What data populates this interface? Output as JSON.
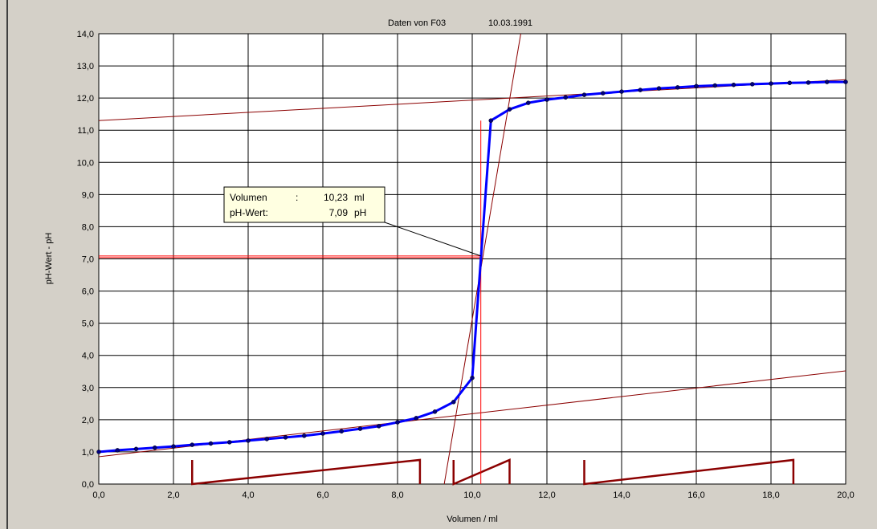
{
  "header": {
    "title": "Daten von F03",
    "date": "10.03.1991"
  },
  "tooltip": {
    "line1_label": "Volumen",
    "line1_sep": ":",
    "line1_value": "10,23",
    "line1_unit": "ml",
    "line2_label": "pH-Wert:",
    "line2_value": "7,09",
    "line2_unit": "pH",
    "point": {
      "x": 10.23,
      "y": 7.09
    }
  },
  "colors": {
    "background": "#d4d0c8",
    "plot_area": "#ffffff",
    "grid": "#000000",
    "curve": "#0000ff",
    "markers": "#000080",
    "tangents": "#8b0000",
    "indicator": "#ff0000",
    "tooltip_bg": "#ffffe1"
  },
  "chart_data": {
    "type": "line",
    "xlabel": "Volumen / ml",
    "ylabel": "pH-Wert - pH",
    "xlim": [
      0,
      20
    ],
    "ylim": [
      0,
      14
    ],
    "grid": true,
    "x_ticks": [
      "0,0",
      "2,0",
      "4,0",
      "6,0",
      "8,0",
      "10,0",
      "12,0",
      "14,0",
      "16,0",
      "18,0",
      "20,0"
    ],
    "y_ticks": [
      "0,0",
      "1,0",
      "2,0",
      "3,0",
      "4,0",
      "5,0",
      "6,0",
      "7,0",
      "8,0",
      "9,0",
      "10,0",
      "11,0",
      "12,0",
      "13,0",
      "14,0"
    ],
    "series": [
      {
        "x": [
          0,
          0.5,
          1,
          1.5,
          2,
          2.5,
          3,
          3.5,
          4,
          4.5,
          5,
          5.5,
          6,
          6.5,
          7,
          7.5,
          8,
          8.5,
          9,
          9.5,
          10,
          10.5,
          11,
          11.5,
          12,
          12.5,
          13,
          13.5,
          14,
          14.5,
          15,
          15.5,
          16,
          16.5,
          17,
          17.5,
          18,
          18.5,
          19,
          19.5,
          20
        ],
        "y": [
          1.0,
          1.05,
          1.09,
          1.13,
          1.17,
          1.22,
          1.26,
          1.3,
          1.35,
          1.4,
          1.45,
          1.5,
          1.57,
          1.64,
          1.72,
          1.8,
          1.92,
          2.05,
          2.25,
          2.55,
          3.3,
          11.3,
          11.65,
          11.85,
          11.95,
          12.02,
          12.1,
          12.15,
          12.2,
          12.25,
          12.3,
          12.33,
          12.37,
          12.39,
          12.41,
          12.43,
          12.45,
          12.47,
          12.48,
          12.5,
          12.5
        ]
      }
    ],
    "tangent_lines": [
      {
        "x": [
          0,
          20
        ],
        "y": [
          0.85,
          3.52
        ]
      },
      {
        "x": [
          0,
          20
        ],
        "y": [
          11.3,
          12.57
        ]
      },
      {
        "x": [
          9.25,
          11.3
        ],
        "y": [
          0,
          14
        ]
      }
    ],
    "indicator_lines": {
      "vertical_x": 10.23,
      "horizontal_y": 7.09
    },
    "sawtooth_groups": [
      {
        "x_start": 2.5,
        "x_end": 8.6,
        "y_peak": 0.75
      },
      {
        "x_start": 9.5,
        "x_end": 11.0,
        "y_peak": 0.75
      },
      {
        "x_start": 13.0,
        "x_end": 18.6,
        "y_peak": 0.75
      }
    ]
  }
}
